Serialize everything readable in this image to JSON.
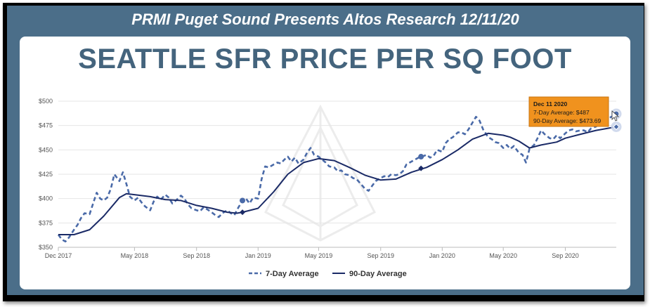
{
  "banner": {
    "text": "PRMI Puget Sound Presents Altos Research 12/11/20"
  },
  "header": {
    "title": "SEATTLE SFR PRICE PER SQ FOOT"
  },
  "tooltip": {
    "date": "Dec 11 2020",
    "line7": "7-Day Average: $487",
    "line90": "90-Day Average: $473.69"
  },
  "colors": {
    "frame": "#4b6e89",
    "series": "#4a6aa8",
    "series_dark": "#1a2a66",
    "tooltip_bg": "#f0921e",
    "grid": "#e6e6e6"
  },
  "chart_data": {
    "type": "line",
    "title": "SEATTLE SFR PRICE PER SQ FOOT",
    "xlabel": "",
    "ylabel": "",
    "x_range": [
      "2017-12-01",
      "2020-12-11"
    ],
    "ylim": [
      350,
      500
    ],
    "yticks": [
      350,
      375,
      400,
      425,
      450,
      475,
      500
    ],
    "ytick_labels": [
      "$350",
      "$375",
      "$400",
      "$425",
      "$450",
      "$475",
      "$500"
    ],
    "xticks": [
      {
        "date": "2017-12-01",
        "label": "Dec 2017"
      },
      {
        "date": "2018-05-01",
        "label": "May 2018"
      },
      {
        "date": "2018-09-01",
        "label": "Sep 2018"
      },
      {
        "date": "2019-01-01",
        "label": "Jan 2019"
      },
      {
        "date": "2019-05-01",
        "label": "May 2019"
      },
      {
        "date": "2019-09-01",
        "label": "Sep 2019"
      },
      {
        "date": "2020-01-01",
        "label": "Jan 2020"
      },
      {
        "date": "2020-05-01",
        "label": "May 2020"
      },
      {
        "date": "2020-09-01",
        "label": "Sep 2020"
      }
    ],
    "grid": "horizontal",
    "legend_position": "bottom",
    "series": [
      {
        "name": "7-Day Average",
        "style": "dashed",
        "points": [
          [
            "2017-12-01",
            363
          ],
          [
            "2017-12-08",
            358
          ],
          [
            "2017-12-15",
            356
          ],
          [
            "2017-12-22",
            360
          ],
          [
            "2018-01-01",
            368
          ],
          [
            "2018-01-08",
            373
          ],
          [
            "2018-01-15",
            380
          ],
          [
            "2018-01-22",
            385
          ],
          [
            "2018-02-01",
            384
          ],
          [
            "2018-02-08",
            395
          ],
          [
            "2018-02-15",
            406
          ],
          [
            "2018-02-22",
            400
          ],
          [
            "2018-03-01",
            398
          ],
          [
            "2018-03-08",
            401
          ],
          [
            "2018-03-15",
            410
          ],
          [
            "2018-03-22",
            425
          ],
          [
            "2018-04-01",
            418
          ],
          [
            "2018-04-08",
            427
          ],
          [
            "2018-04-15",
            415
          ],
          [
            "2018-04-22",
            402
          ],
          [
            "2018-05-01",
            398
          ],
          [
            "2018-05-08",
            401
          ],
          [
            "2018-05-15",
            396
          ],
          [
            "2018-05-22",
            392
          ],
          [
            "2018-06-01",
            388
          ],
          [
            "2018-06-08",
            397
          ],
          [
            "2018-06-15",
            402
          ],
          [
            "2018-06-22",
            399
          ],
          [
            "2018-07-01",
            404
          ],
          [
            "2018-07-08",
            401
          ],
          [
            "2018-07-15",
            395
          ],
          [
            "2018-07-22",
            398
          ],
          [
            "2018-08-01",
            403
          ],
          [
            "2018-08-08",
            400
          ],
          [
            "2018-08-15",
            394
          ],
          [
            "2018-08-22",
            390
          ],
          [
            "2018-09-01",
            388
          ],
          [
            "2018-09-08",
            387
          ],
          [
            "2018-09-15",
            391
          ],
          [
            "2018-09-22",
            389
          ],
          [
            "2018-10-01",
            386
          ],
          [
            "2018-10-08",
            383
          ],
          [
            "2018-10-15",
            381
          ],
          [
            "2018-10-22",
            385
          ],
          [
            "2018-11-01",
            388
          ],
          [
            "2018-11-08",
            385
          ],
          [
            "2018-11-15",
            383
          ],
          [
            "2018-11-22",
            390
          ],
          [
            "2018-12-01",
            398
          ],
          [
            "2018-12-08",
            400
          ],
          [
            "2018-12-15",
            395
          ],
          [
            "2018-12-22",
            401
          ],
          [
            "2019-01-01",
            400
          ],
          [
            "2019-01-08",
            420
          ],
          [
            "2019-01-15",
            433
          ],
          [
            "2019-01-22",
            432
          ],
          [
            "2019-02-01",
            435
          ],
          [
            "2019-02-08",
            437
          ],
          [
            "2019-02-15",
            436
          ],
          [
            "2019-02-22",
            440
          ],
          [
            "2019-03-01",
            443
          ],
          [
            "2019-03-08",
            438
          ],
          [
            "2019-03-15",
            442
          ],
          [
            "2019-03-22",
            436
          ],
          [
            "2019-04-01",
            440
          ],
          [
            "2019-04-08",
            447
          ],
          [
            "2019-04-15",
            452
          ],
          [
            "2019-04-22",
            445
          ],
          [
            "2019-05-01",
            443
          ],
          [
            "2019-05-08",
            440
          ],
          [
            "2019-05-15",
            437
          ],
          [
            "2019-05-22",
            433
          ],
          [
            "2019-06-01",
            432
          ],
          [
            "2019-06-08",
            428
          ],
          [
            "2019-06-15",
            429
          ],
          [
            "2019-06-22",
            425
          ],
          [
            "2019-07-01",
            424
          ],
          [
            "2019-07-08",
            421
          ],
          [
            "2019-07-15",
            420
          ],
          [
            "2019-07-22",
            416
          ],
          [
            "2019-08-01",
            410
          ],
          [
            "2019-08-08",
            408
          ],
          [
            "2019-08-15",
            413
          ],
          [
            "2019-08-22",
            418
          ],
          [
            "2019-09-01",
            421
          ],
          [
            "2019-09-08",
            423
          ],
          [
            "2019-09-15",
            422
          ],
          [
            "2019-09-22",
            425
          ],
          [
            "2019-10-01",
            424
          ],
          [
            "2019-10-08",
            425
          ],
          [
            "2019-10-15",
            428
          ],
          [
            "2019-10-22",
            435
          ],
          [
            "2019-11-01",
            438
          ],
          [
            "2019-11-08",
            440
          ],
          [
            "2019-11-15",
            442
          ],
          [
            "2019-11-22",
            443
          ],
          [
            "2019-12-01",
            445
          ],
          [
            "2019-12-08",
            442
          ],
          [
            "2019-12-15",
            444
          ],
          [
            "2019-12-22",
            450
          ],
          [
            "2020-01-01",
            448
          ],
          [
            "2020-01-08",
            457
          ],
          [
            "2020-01-15",
            461
          ],
          [
            "2020-01-22",
            463
          ],
          [
            "2020-02-01",
            468
          ],
          [
            "2020-02-08",
            468
          ],
          [
            "2020-02-15",
            466
          ],
          [
            "2020-02-22",
            471
          ],
          [
            "2020-03-01",
            478
          ],
          [
            "2020-03-08",
            484
          ],
          [
            "2020-03-15",
            480
          ],
          [
            "2020-03-22",
            471
          ],
          [
            "2020-04-01",
            463
          ],
          [
            "2020-04-08",
            461
          ],
          [
            "2020-04-15",
            458
          ],
          [
            "2020-04-22",
            457
          ],
          [
            "2020-05-01",
            452
          ],
          [
            "2020-05-08",
            455
          ],
          [
            "2020-05-15",
            451
          ],
          [
            "2020-05-22",
            454
          ],
          [
            "2020-06-01",
            447
          ],
          [
            "2020-06-08",
            445
          ],
          [
            "2020-06-15",
            437
          ],
          [
            "2020-06-22",
            451
          ],
          [
            "2020-07-01",
            455
          ],
          [
            "2020-07-08",
            462
          ],
          [
            "2020-07-15",
            470
          ],
          [
            "2020-07-22",
            466
          ],
          [
            "2020-08-01",
            462
          ],
          [
            "2020-08-08",
            461
          ],
          [
            "2020-08-15",
            465
          ],
          [
            "2020-08-22",
            462
          ],
          [
            "2020-09-01",
            467
          ],
          [
            "2020-09-08",
            470
          ],
          [
            "2020-09-15",
            471
          ],
          [
            "2020-09-22",
            469
          ],
          [
            "2020-10-01",
            470
          ],
          [
            "2020-10-08",
            470
          ],
          [
            "2020-10-15",
            468
          ],
          [
            "2020-10-22",
            472
          ],
          [
            "2020-11-01",
            474
          ],
          [
            "2020-11-08",
            478
          ],
          [
            "2020-11-15",
            482
          ],
          [
            "2020-11-22",
            480
          ],
          [
            "2020-12-01",
            484
          ],
          [
            "2020-12-11",
            487
          ]
        ]
      },
      {
        "name": "90-Day Average",
        "style": "solid",
        "points": [
          [
            "2017-12-01",
            363
          ],
          [
            "2018-01-01",
            363
          ],
          [
            "2018-02-01",
            368
          ],
          [
            "2018-03-01",
            382
          ],
          [
            "2018-04-01",
            401
          ],
          [
            "2018-04-15",
            405
          ],
          [
            "2018-05-01",
            404
          ],
          [
            "2018-06-01",
            402
          ],
          [
            "2018-07-01",
            399
          ],
          [
            "2018-08-01",
            398
          ],
          [
            "2018-09-01",
            393
          ],
          [
            "2018-10-01",
            390
          ],
          [
            "2018-11-01",
            386
          ],
          [
            "2018-11-20",
            385
          ],
          [
            "2018-12-01",
            386
          ],
          [
            "2019-01-01",
            390
          ],
          [
            "2019-02-01",
            407
          ],
          [
            "2019-03-01",
            425
          ],
          [
            "2019-04-01",
            437
          ],
          [
            "2019-05-01",
            441
          ],
          [
            "2019-06-01",
            439
          ],
          [
            "2019-07-01",
            432
          ],
          [
            "2019-08-01",
            424
          ],
          [
            "2019-09-01",
            419
          ],
          [
            "2019-10-01",
            420
          ],
          [
            "2019-11-01",
            427
          ],
          [
            "2019-12-01",
            432
          ],
          [
            "2020-01-01",
            440
          ],
          [
            "2020-02-01",
            450
          ],
          [
            "2020-03-01",
            461
          ],
          [
            "2020-04-01",
            467
          ],
          [
            "2020-05-01",
            465
          ],
          [
            "2020-05-15",
            463
          ],
          [
            "2020-06-01",
            459
          ],
          [
            "2020-06-22",
            452
          ],
          [
            "2020-07-15",
            455
          ],
          [
            "2020-08-15",
            458
          ],
          [
            "2020-09-01",
            462
          ],
          [
            "2020-10-01",
            466
          ],
          [
            "2020-11-01",
            470
          ],
          [
            "2020-12-11",
            473.69
          ]
        ]
      }
    ],
    "markers": [
      {
        "series": "7-Day Average",
        "date": "2018-12-01",
        "value": 398,
        "shape": "circle"
      },
      {
        "series": "90-Day Average",
        "date": "2018-12-01",
        "value": 386,
        "shape": "diamond"
      },
      {
        "series": "7-Day Average",
        "date": "2019-11-20",
        "value": 443,
        "shape": "circle"
      },
      {
        "series": "90-Day Average",
        "date": "2019-11-20",
        "value": 431,
        "shape": "diamond"
      },
      {
        "series": "7-Day Average",
        "date": "2020-12-11",
        "value": 487,
        "shape": "circle"
      },
      {
        "series": "90-Day Average",
        "date": "2020-12-11",
        "value": 473.69,
        "shape": "diamond"
      }
    ],
    "legend": [
      "7-Day Average",
      "90-Day Average"
    ]
  }
}
